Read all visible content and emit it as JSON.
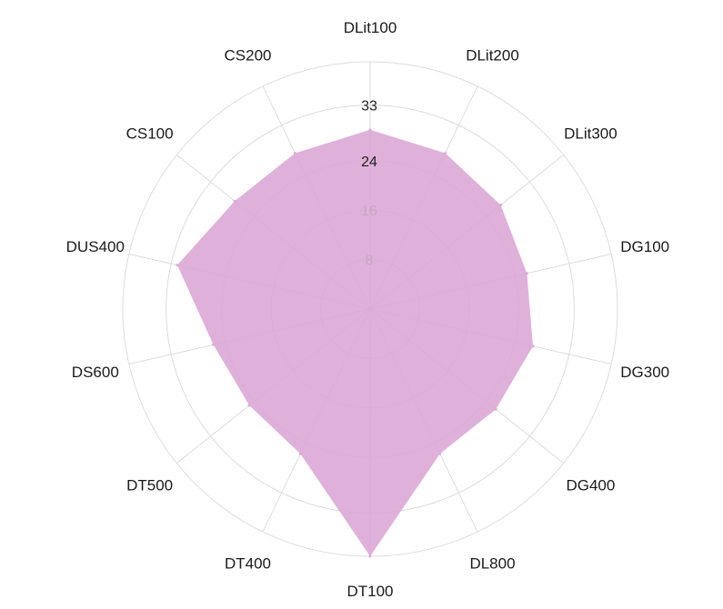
{
  "chart_data": {
    "type": "radar",
    "title": "",
    "categories": [
      "DLit100",
      "DLit200",
      "DLit300",
      "DG100",
      "DG300",
      "DG400",
      "DL800",
      "DT100",
      "DT400",
      "DT500",
      "DS600",
      "DUS400",
      "CS100",
      "CS200"
    ],
    "series": [
      {
        "values": [
          29,
          28,
          27,
          26,
          27,
          26,
          26,
          40,
          26,
          25,
          26,
          32,
          28,
          28
        ]
      }
    ],
    "radial_ticks": [
      8,
      16,
      24,
      33
    ],
    "rlim": [
      0,
      40
    ],
    "grid": true,
    "colors": {
      "fill": "#dba6d5",
      "grid": "#dcdcdc",
      "tick_inside": "#c9a6c4",
      "tick_outside": "#222222",
      "label": "#1a1a1a"
    }
  }
}
